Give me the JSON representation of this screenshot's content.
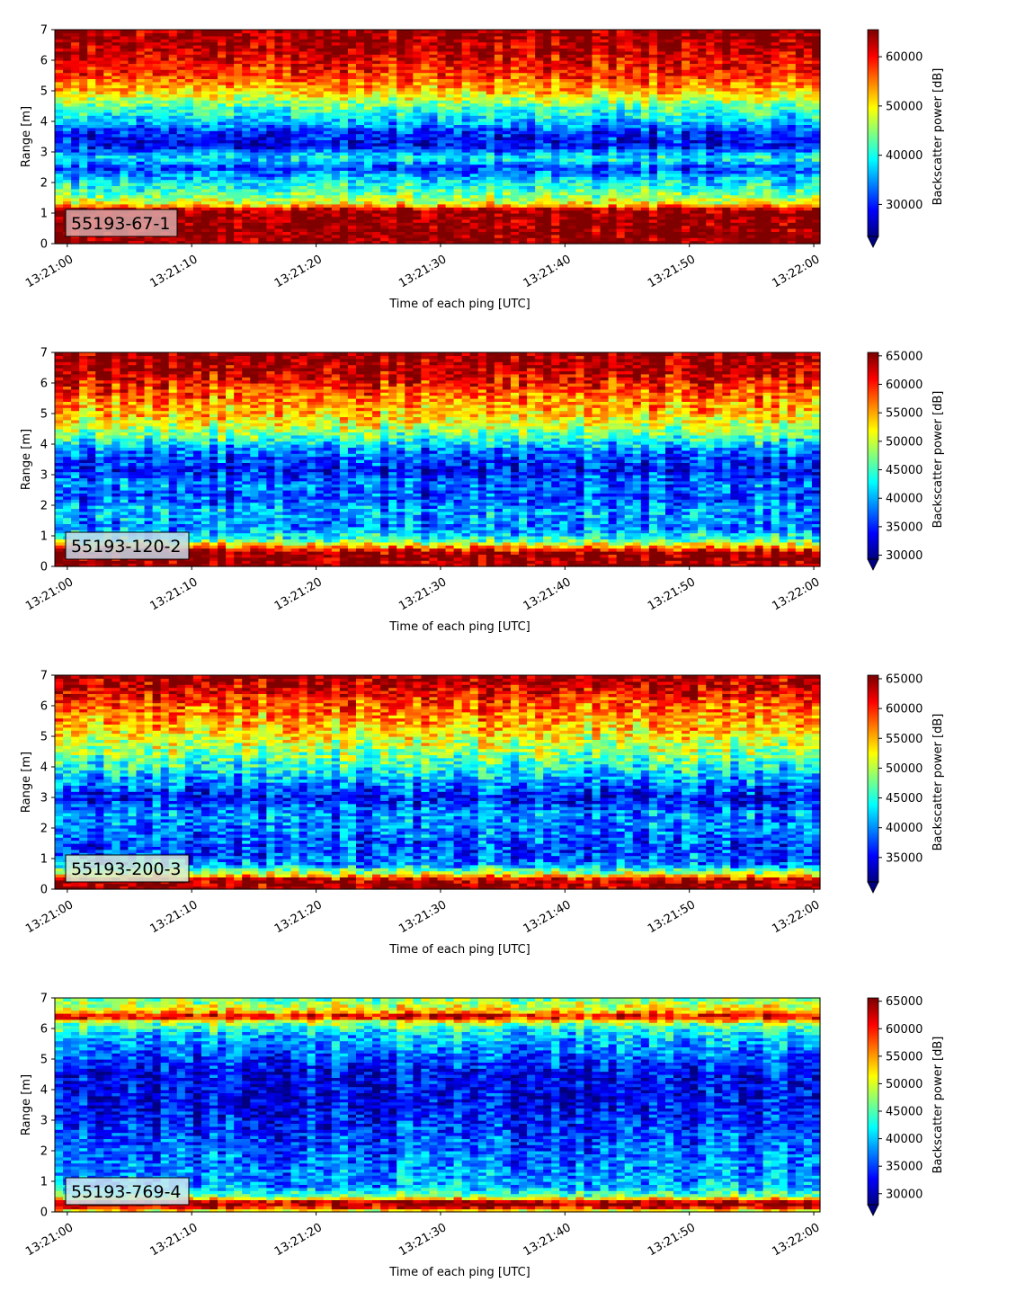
{
  "chart_data": [
    {
      "type": "heatmap",
      "label": "55193-67-1",
      "xlabel": "Time of each ping [UTC]",
      "ylabel": "Range [m]",
      "xticks": [
        "13:21:00",
        "13:21:10",
        "13:21:20",
        "13:21:30",
        "13:21:40",
        "13:21:50",
        "13:22:00"
      ],
      "yticks": [
        "0",
        "1",
        "2",
        "3",
        "4",
        "5",
        "6",
        "7"
      ],
      "xlim_seconds": [
        -1,
        60.5
      ],
      "ylim": [
        0,
        7
      ],
      "colorbar": {
        "label": "Backscatter power [dB]",
        "ticks": [
          "30000",
          "40000",
          "50000",
          "60000"
        ],
        "tick_values": [
          30000,
          40000,
          50000,
          60000
        ],
        "range": [
          23500,
          65500
        ]
      },
      "colormap": "jet",
      "label_box_color": "#d9a8a8",
      "profile": [
        {
          "range": 0.1,
          "value": 65000
        },
        {
          "range": 0.25,
          "value": 65000
        },
        {
          "range": 1.1,
          "value": 65000
        },
        {
          "range": 1.3,
          "value": 50000
        },
        {
          "range": 1.6,
          "value": 44000
        },
        {
          "range": 2.0,
          "value": 39000
        },
        {
          "range": 2.5,
          "value": 31000
        },
        {
          "range": 2.8,
          "value": 40000
        },
        {
          "range": 3.2,
          "value": 29000
        },
        {
          "range": 3.6,
          "value": 30000
        },
        {
          "range": 4.0,
          "value": 37000
        },
        {
          "range": 4.5,
          "value": 43000
        },
        {
          "range": 5.0,
          "value": 52000
        },
        {
          "range": 5.5,
          "value": 58000
        },
        {
          "range": 6.0,
          "value": 61000
        },
        {
          "range": 6.5,
          "value": 64000
        },
        {
          "range": 7.0,
          "value": 65000
        }
      ]
    },
    {
      "type": "heatmap",
      "label": "55193-120-2",
      "xlabel": "Time of each ping [UTC]",
      "ylabel": "Range [m]",
      "xticks": [
        "13:21:00",
        "13:21:10",
        "13:21:20",
        "13:21:30",
        "13:21:40",
        "13:21:50",
        "13:22:00"
      ],
      "yticks": [
        "0",
        "1",
        "2",
        "3",
        "4",
        "5",
        "6",
        "7"
      ],
      "xlim_seconds": [
        -1,
        60.5
      ],
      "ylim": [
        0,
        7
      ],
      "colorbar": {
        "label": "Backscatter power [dB]",
        "ticks": [
          "30000",
          "35000",
          "40000",
          "45000",
          "50000",
          "55000",
          "60000",
          "65000"
        ],
        "tick_values": [
          30000,
          35000,
          40000,
          45000,
          50000,
          55000,
          60000,
          65000
        ],
        "range": [
          29300,
          65600
        ]
      },
      "colormap": "jet",
      "label_box_color": "#c8d8e8",
      "profile": [
        {
          "range": 0.05,
          "value": 65000
        },
        {
          "range": 0.45,
          "value": 65000
        },
        {
          "range": 0.65,
          "value": 56000
        },
        {
          "range": 0.9,
          "value": 44000
        },
        {
          "range": 1.3,
          "value": 38000
        },
        {
          "range": 1.8,
          "value": 40000
        },
        {
          "range": 2.3,
          "value": 36000
        },
        {
          "range": 2.7,
          "value": 38000
        },
        {
          "range": 3.2,
          "value": 34000
        },
        {
          "range": 3.8,
          "value": 38000
        },
        {
          "range": 4.3,
          "value": 46000
        },
        {
          "range": 4.8,
          "value": 52000
        },
        {
          "range": 5.4,
          "value": 56000
        },
        {
          "range": 6.0,
          "value": 60000
        },
        {
          "range": 6.5,
          "value": 64000
        },
        {
          "range": 7.0,
          "value": 65000
        }
      ]
    },
    {
      "type": "heatmap",
      "label": "55193-200-3",
      "xlabel": "Time of each ping [UTC]",
      "ylabel": "Range [m]",
      "xticks": [
        "13:21:00",
        "13:21:10",
        "13:21:20",
        "13:21:30",
        "13:21:40",
        "13:21:50",
        "13:22:00"
      ],
      "yticks": [
        "0",
        "1",
        "2",
        "3",
        "4",
        "5",
        "6",
        "7"
      ],
      "xlim_seconds": [
        -1,
        60.5
      ],
      "ylim": [
        0,
        7
      ],
      "colorbar": {
        "label": "Backscatter power [dB]",
        "ticks": [
          "35000",
          "40000",
          "45000",
          "50000",
          "55000",
          "60000",
          "65000"
        ],
        "tick_values": [
          35000,
          40000,
          45000,
          50000,
          55000,
          60000,
          65000
        ],
        "range": [
          30900,
          65600
        ]
      },
      "colormap": "jet",
      "label_box_color": "#d8ecd8",
      "profile": [
        {
          "range": 0.05,
          "value": 65000
        },
        {
          "range": 0.3,
          "value": 64000
        },
        {
          "range": 0.5,
          "value": 52000
        },
        {
          "range": 0.8,
          "value": 40000
        },
        {
          "range": 1.3,
          "value": 37000
        },
        {
          "range": 1.9,
          "value": 39000
        },
        {
          "range": 2.5,
          "value": 40000
        },
        {
          "range": 3.0,
          "value": 35000
        },
        {
          "range": 3.6,
          "value": 41000
        },
        {
          "range": 4.2,
          "value": 46000
        },
        {
          "range": 4.8,
          "value": 51000
        },
        {
          "range": 5.4,
          "value": 55000
        },
        {
          "range": 6.0,
          "value": 58000
        },
        {
          "range": 6.5,
          "value": 62000
        },
        {
          "range": 7.0,
          "value": 65000
        }
      ]
    },
    {
      "type": "heatmap",
      "label": "55193-769-4",
      "xlabel": "Time of each ping [UTC]",
      "ylabel": "Range [m]",
      "xticks": [
        "13:21:00",
        "13:21:10",
        "13:21:20",
        "13:21:30",
        "13:21:40",
        "13:21:50",
        "13:22:00"
      ],
      "yticks": [
        "0",
        "1",
        "2",
        "3",
        "4",
        "5",
        "6",
        "7"
      ],
      "xlim_seconds": [
        -1,
        60.5
      ],
      "ylim": [
        0,
        7
      ],
      "colorbar": {
        "label": "Backscatter power [dB]",
        "ticks": [
          "30000",
          "35000",
          "40000",
          "45000",
          "50000",
          "55000",
          "60000",
          "65000"
        ],
        "tick_values": [
          30000,
          35000,
          40000,
          45000,
          50000,
          55000,
          60000,
          65000
        ],
        "range": [
          28000,
          65600
        ]
      },
      "colormap": "jet",
      "label_box_color": "#d0e8f0",
      "profile": [
        {
          "range": 0.05,
          "value": 52000
        },
        {
          "range": 0.2,
          "value": 65000
        },
        {
          "range": 0.35,
          "value": 63000
        },
        {
          "range": 0.5,
          "value": 47000
        },
        {
          "range": 0.8,
          "value": 39000
        },
        {
          "range": 1.5,
          "value": 37000
        },
        {
          "range": 2.5,
          "value": 35000
        },
        {
          "range": 3.5,
          "value": 32000
        },
        {
          "range": 4.5,
          "value": 32000
        },
        {
          "range": 5.2,
          "value": 36000
        },
        {
          "range": 5.8,
          "value": 40000
        },
        {
          "range": 6.2,
          "value": 47000
        },
        {
          "range": 6.4,
          "value": 63000
        },
        {
          "range": 6.6,
          "value": 52000
        },
        {
          "range": 7.0,
          "value": 46000
        }
      ]
    }
  ]
}
